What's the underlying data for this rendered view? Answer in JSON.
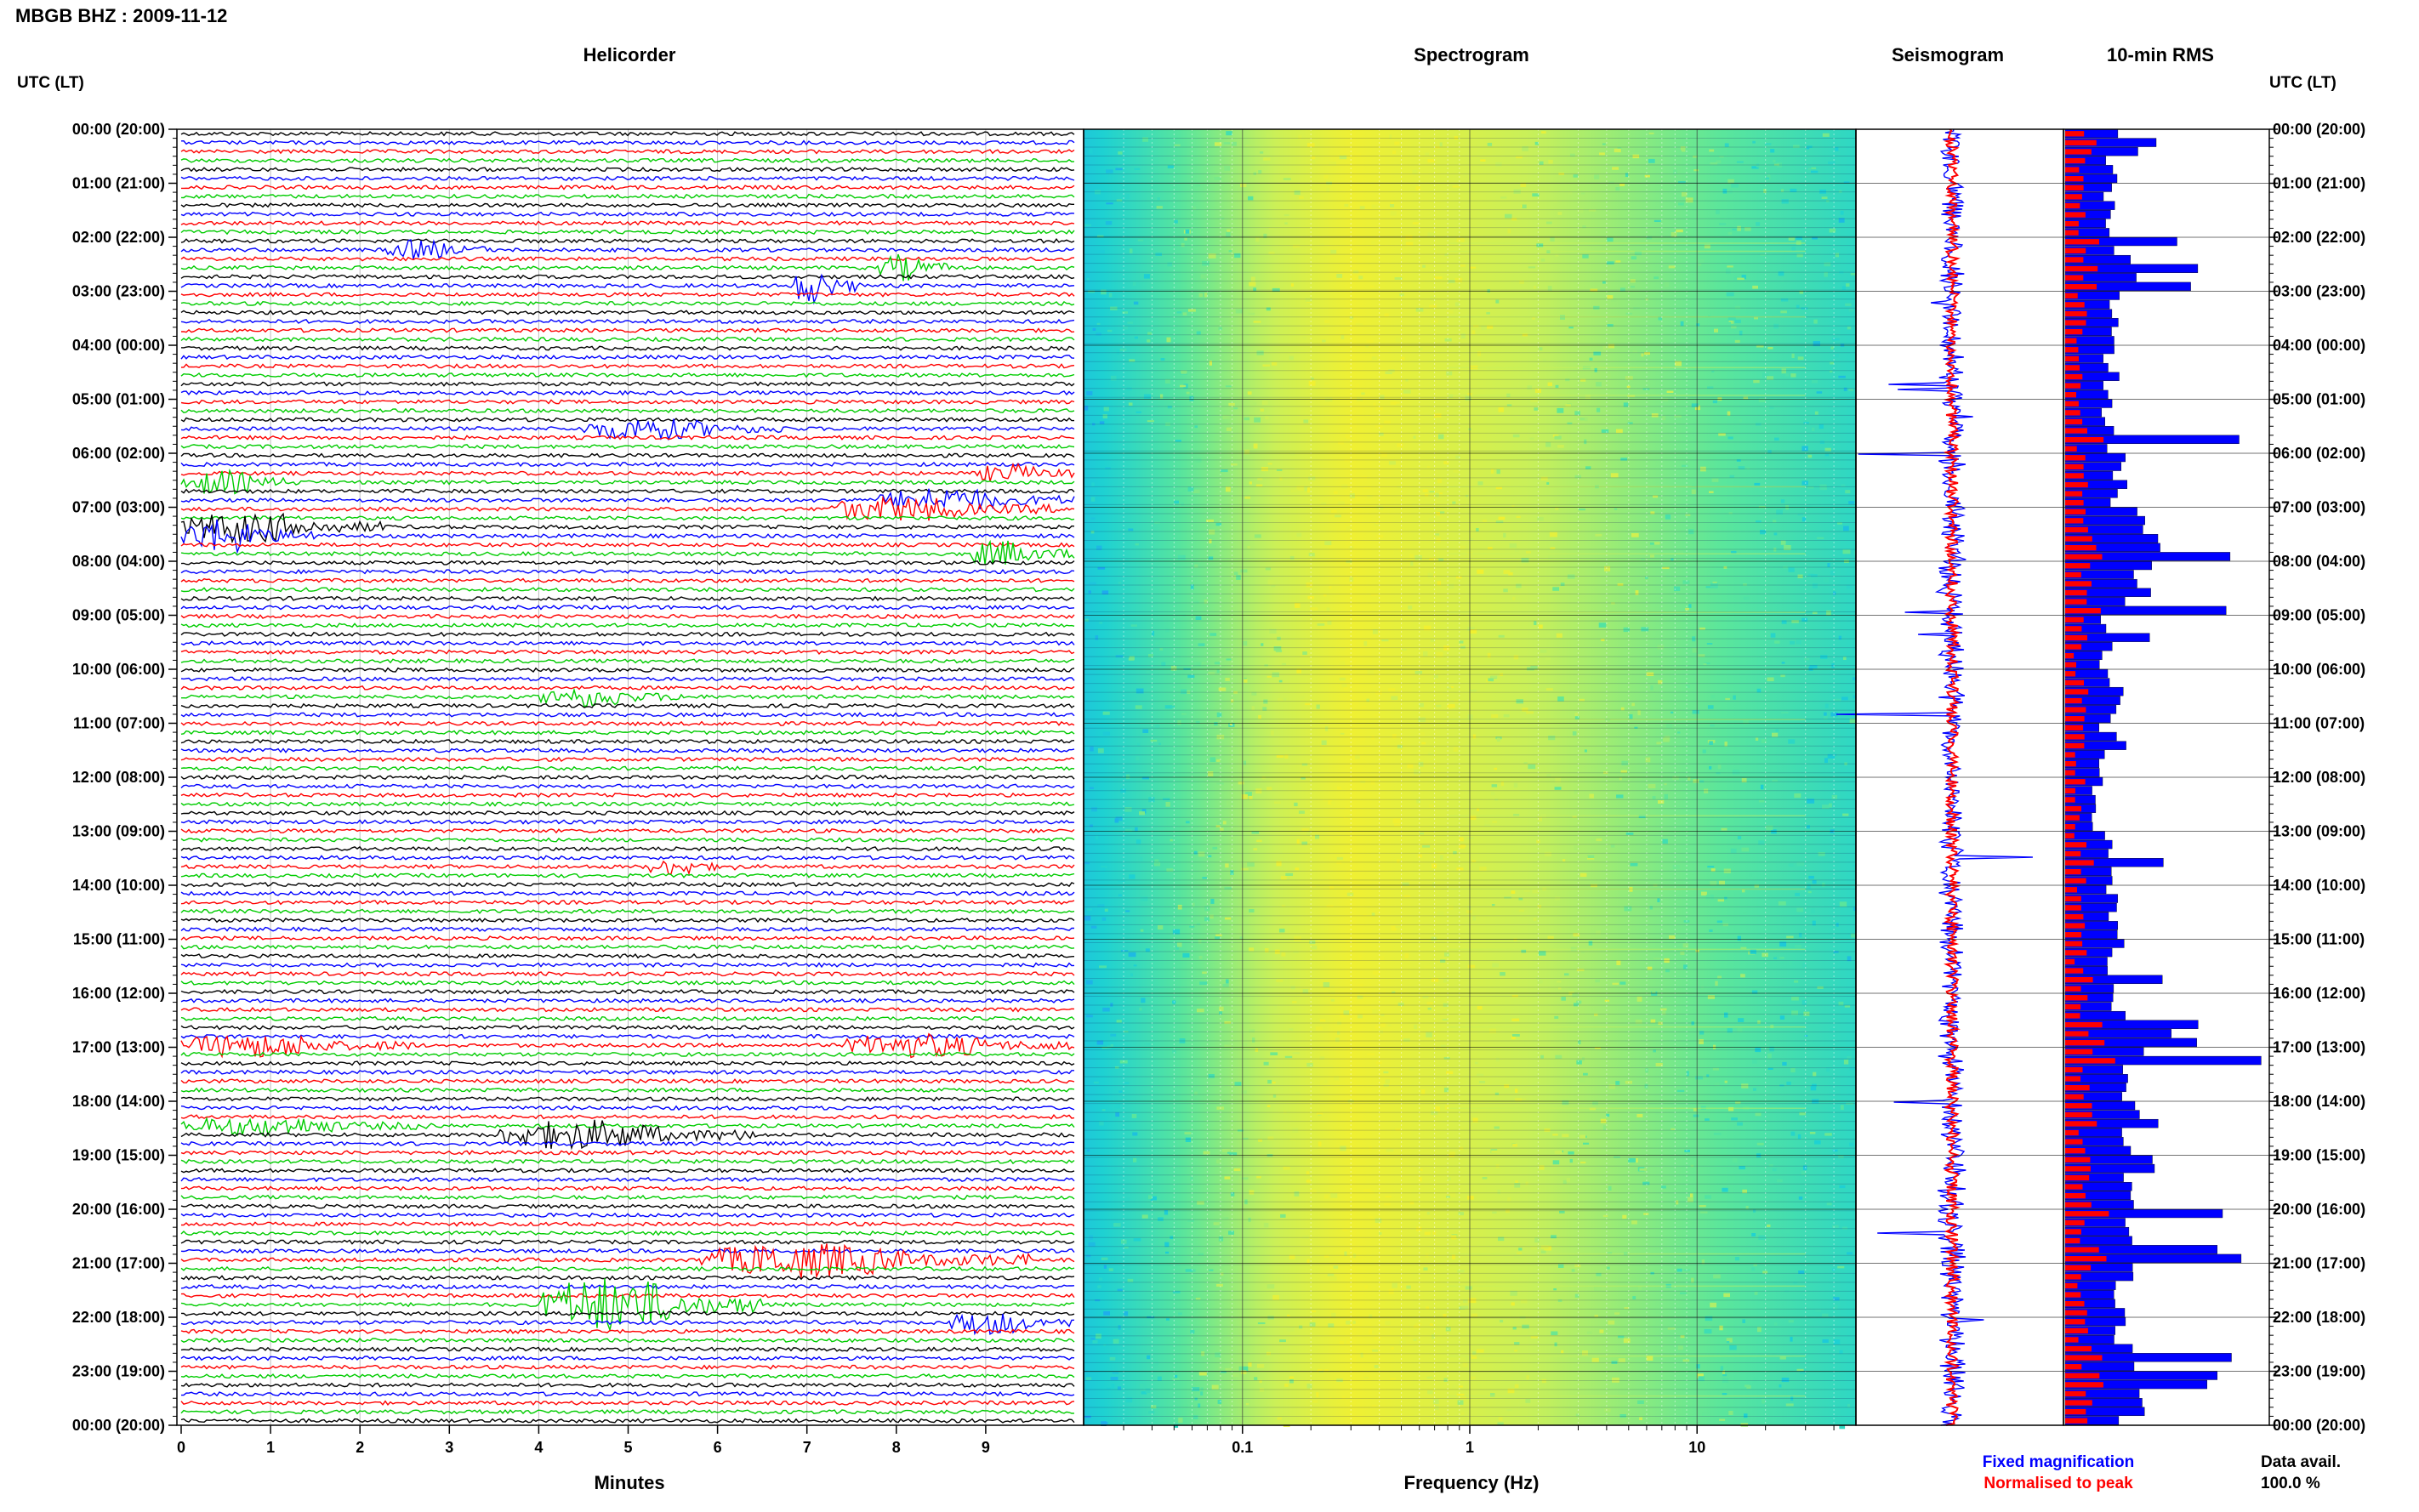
{
  "page": {
    "title": "MBGB BHZ : 2009-11-12",
    "utc_lt_label": "UTC (LT)",
    "colors": {
      "trace_cycle": [
        "#000000",
        "#0000ff",
        "#ff0000",
        "#00cc00"
      ],
      "rms_fixed": "#0000ff",
      "rms_normalised": "#ff0000"
    }
  },
  "chart_data": [
    {
      "type": "line",
      "panel": "helicorder",
      "title": "Helicorder",
      "xlabel": "Minutes",
      "xlim": [
        0,
        10
      ],
      "x_ticks": [
        "0",
        "1",
        "2",
        "3",
        "4",
        "5",
        "6",
        "7",
        "8",
        "9"
      ],
      "rows": 145,
      "minutes_per_row": 10,
      "events": [
        {
          "row": 13,
          "start_min": 2.3,
          "end_min": 3.4,
          "amp": 1.6
        },
        {
          "row": 15,
          "start_min": 7.8,
          "end_min": 8.6,
          "amp": 2.2
        },
        {
          "row": 17,
          "start_min": 6.8,
          "end_min": 7.6,
          "amp": 3.0
        },
        {
          "row": 33,
          "start_min": 4.5,
          "end_min": 6.8,
          "amp": 1.8
        },
        {
          "row": 38,
          "start_min": 8.9,
          "end_min": 10.0,
          "amp": 1.5
        },
        {
          "row": 39,
          "start_min": 0.0,
          "end_min": 1.3,
          "amp": 2.0
        },
        {
          "row": 41,
          "start_min": 7.8,
          "end_min": 10.0,
          "amp": 2.0
        },
        {
          "row": 42,
          "start_min": 7.2,
          "end_min": 9.8,
          "amp": 2.0
        },
        {
          "row": 44,
          "start_min": 0.0,
          "end_min": 2.3,
          "amp": 2.6
        },
        {
          "row": 45,
          "start_min": 0.0,
          "end_min": 1.5,
          "amp": 3.0
        },
        {
          "row": 47,
          "start_min": 8.8,
          "end_min": 10.0,
          "amp": 2.2
        },
        {
          "row": 63,
          "start_min": 4.0,
          "end_min": 5.7,
          "amp": 1.6
        },
        {
          "row": 82,
          "start_min": 5.2,
          "end_min": 6.2,
          "amp": 1.3
        },
        {
          "row": 102,
          "start_min": 0.0,
          "end_min": 2.6,
          "amp": 2.0
        },
        {
          "row": 102,
          "start_min": 7.4,
          "end_min": 10.0,
          "amp": 2.0
        },
        {
          "row": 111,
          "start_min": 0.0,
          "end_min": 2.8,
          "amp": 1.5
        },
        {
          "row": 112,
          "start_min": 3.5,
          "end_min": 6.5,
          "amp": 2.5
        },
        {
          "row": 126,
          "start_min": 5.8,
          "end_min": 9.5,
          "amp": 3.0
        },
        {
          "row": 131,
          "start_min": 4.0,
          "end_min": 6.5,
          "amp": 5.0
        },
        {
          "row": 133,
          "start_min": 8.6,
          "end_min": 10.0,
          "amp": 2.0
        }
      ]
    },
    {
      "type": "heatmap",
      "panel": "spectrogram",
      "title": "Spectrogram",
      "xlabel": "Frequency (Hz)",
      "xscale": "log",
      "xlim": [
        0.02,
        50
      ],
      "x_ticks": [
        "0.1",
        "1",
        "10"
      ],
      "rows": 145,
      "peak_frequency_hz": 0.3,
      "colormap": [
        "#1a4fe0",
        "#1ea7f0",
        "#1ed2d2",
        "#5ce69a",
        "#c8f05a",
        "#f0f032"
      ]
    },
    {
      "type": "line",
      "panel": "seismogram",
      "title": "Seismogram",
      "series": [
        {
          "name": "Fixed magnification",
          "color": "#0000ff"
        },
        {
          "name": "Normalised to peak",
          "color": "#ff0000"
        }
      ]
    },
    {
      "type": "bar",
      "panel": "rms",
      "title": "10-min RMS",
      "orientation": "horizontal",
      "series": [
        {
          "name": "Fixed magnification",
          "color": "#0000ff"
        },
        {
          "name": "Normalised to peak",
          "color": "#ff0000"
        }
      ],
      "hourly_mean": [
        0.22,
        0.22,
        0.3,
        0.22,
        0.22,
        0.2,
        0.25,
        0.45,
        0.36,
        0.2,
        0.26,
        0.17,
        0.16,
        0.2,
        0.24,
        0.26,
        0.26,
        0.34,
        0.3,
        0.36,
        0.34,
        0.28,
        0.28,
        0.32
      ],
      "hourly_peak": [
        0.48,
        0.42,
        0.7,
        0.52,
        0.52,
        1.0,
        0.78,
        0.95,
        0.9,
        0.44,
        0.72,
        0.34,
        0.32,
        0.52,
        0.46,
        0.6,
        0.7,
        1.0,
        0.55,
        0.74,
        1.0,
        0.6,
        1.0,
        0.78
      ],
      "footer_label": "Data avail.",
      "data_availability": "100.0 %"
    },
    {
      "type": "table",
      "panel": "time-axis",
      "ylabel": "UTC (LT)",
      "hour_labels": [
        "00:00 (20:00)",
        "01:00 (21:00)",
        "02:00 (22:00)",
        "03:00 (23:00)",
        "04:00 (00:00)",
        "05:00 (01:00)",
        "06:00 (02:00)",
        "07:00 (03:00)",
        "08:00 (04:00)",
        "09:00 (05:00)",
        "10:00 (06:00)",
        "11:00 (07:00)",
        "12:00 (08:00)",
        "13:00 (09:00)",
        "14:00 (10:00)",
        "15:00 (11:00)",
        "16:00 (12:00)",
        "17:00 (13:00)",
        "18:00 (14:00)",
        "19:00 (15:00)",
        "20:00 (16:00)",
        "21:00 (17:00)",
        "22:00 (18:00)",
        "23:00 (19:00)",
        "00:00 (20:00)"
      ]
    }
  ]
}
